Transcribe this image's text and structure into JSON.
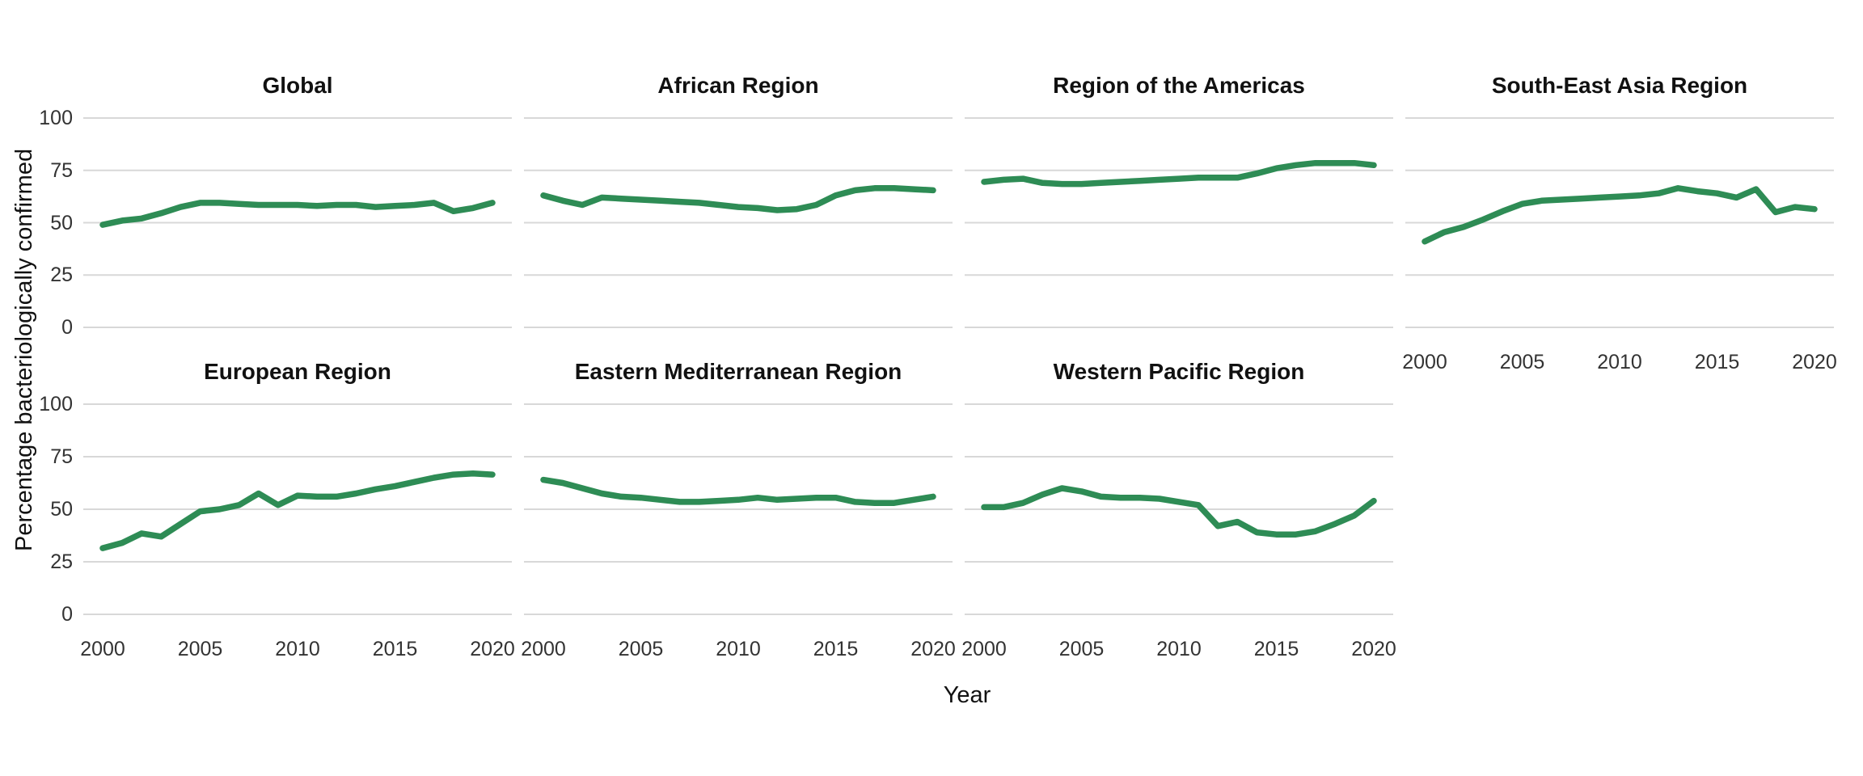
{
  "chart_data": {
    "type": "line",
    "title": "",
    "xlabel": "Year",
    "ylabel": "Percentage bacteriologically confirmed",
    "x": [
      2000,
      2001,
      2002,
      2003,
      2004,
      2005,
      2006,
      2007,
      2008,
      2009,
      2010,
      2011,
      2012,
      2013,
      2014,
      2015,
      2016,
      2017,
      2018,
      2019,
      2020
    ],
    "x_ticks": [
      2000,
      2005,
      2010,
      2015,
      2020
    ],
    "y_ticks": [
      100,
      75,
      50,
      25,
      0
    ],
    "ylim": [
      0,
      100
    ],
    "grid": "horizontal",
    "legend": "none",
    "colors": {
      "line": "#2e8c55",
      "gridline": "#d8d8d8",
      "tick_text": "#333333",
      "title_text": "#111111",
      "background": "#ffffff"
    },
    "facets": [
      {
        "label": "Global",
        "values": [
          49,
          51,
          52,
          54.5,
          57.5,
          59.5,
          59.5,
          59,
          58.5,
          58.5,
          58.5,
          58,
          58.5,
          58.5,
          57.5,
          58,
          58.5,
          59.5,
          55.5,
          57,
          59.5
        ]
      },
      {
        "label": "African Region",
        "values": [
          63,
          60.5,
          58.5,
          62,
          61.5,
          61,
          60.5,
          60,
          59.5,
          58.5,
          57.5,
          57,
          56,
          56.5,
          58.5,
          63,
          65.5,
          66.5,
          66.5,
          66,
          65.5
        ]
      },
      {
        "label": "Region of the Americas",
        "values": [
          69.5,
          70.5,
          71,
          69,
          68.5,
          68.5,
          69,
          69.5,
          70,
          70.5,
          71,
          71.5,
          71.5,
          71.5,
          73.5,
          76,
          77.5,
          78.5,
          78.5,
          78.5,
          77.5
        ]
      },
      {
        "label": "South-East Asia Region",
        "values": [
          41,
          45.5,
          48,
          51.5,
          55.5,
          59,
          60.5,
          61,
          61.5,
          62,
          62.5,
          63,
          64,
          66.5,
          65,
          64,
          62,
          66,
          55,
          57.5,
          56.5
        ]
      },
      {
        "label": "European Region",
        "values": [
          31.5,
          34,
          38.5,
          37,
          43,
          49,
          50,
          52,
          57.5,
          52,
          56.5,
          56,
          56,
          57.5,
          59.5,
          61,
          63,
          65,
          66.5,
          67,
          66.5
        ]
      },
      {
        "label": "Eastern Mediterranean Region",
        "values": [
          64,
          62.5,
          60,
          57.5,
          56,
          55.5,
          54.5,
          53.5,
          53.5,
          54,
          54.5,
          55.5,
          54.5,
          55,
          55.5,
          55.5,
          53.5,
          53,
          53,
          54.5,
          56
        ]
      },
      {
        "label": "Western Pacific Region",
        "values": [
          51,
          51,
          53,
          57,
          60,
          58.5,
          56,
          55.5,
          55.5,
          55,
          53.5,
          52,
          42,
          44,
          39,
          38,
          38,
          39.5,
          43,
          47,
          54
        ]
      }
    ]
  }
}
